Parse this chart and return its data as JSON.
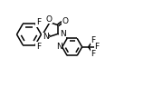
{
  "bg_color": "#ffffff",
  "line_color": "#000000",
  "line_width": 1.1,
  "font_size": 6.5,
  "fig_width": 1.8,
  "fig_height": 0.96,
  "dpi": 100,
  "xlim": [
    0,
    18
  ],
  "ylim": [
    0,
    9.6
  ]
}
